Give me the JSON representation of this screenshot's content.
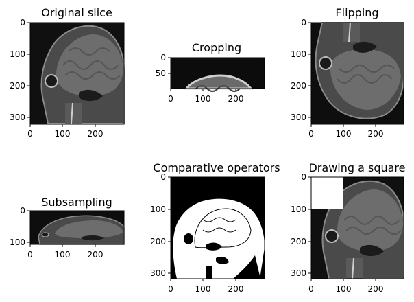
{
  "figure": {
    "panels": [
      {
        "id": "original",
        "title": "Original slice",
        "x_ticks": [
          "0",
          "100",
          "200"
        ],
        "y_ticks": [
          "0",
          "100",
          "200",
          "300"
        ],
        "content": "mri-sagittal",
        "bg": "#101010"
      },
      {
        "id": "cropping",
        "title": "Cropping",
        "x_ticks": [
          "0",
          "100",
          "200"
        ],
        "y_ticks": [
          "0",
          "50"
        ],
        "content": "mri-crop-top",
        "bg": "#0c0c0c"
      },
      {
        "id": "flipping",
        "title": "Flipping",
        "x_ticks": [
          "0",
          "100",
          "200"
        ],
        "y_ticks": [
          "0",
          "100",
          "200",
          "300"
        ],
        "content": "mri-flipped",
        "bg": "#0e0e0e"
      },
      {
        "id": "subsampling",
        "title": "Subsampling",
        "x_ticks": [
          "0",
          "100",
          "200"
        ],
        "y_ticks": [
          "0",
          "100"
        ],
        "content": "mri-squashed",
        "bg": "#0e0e0e"
      },
      {
        "id": "comparative",
        "title": "Comparative operators",
        "x_ticks": [
          "0",
          "100",
          "200"
        ],
        "y_ticks": [
          "0",
          "100",
          "200",
          "300"
        ],
        "content": "binary-mask",
        "bg": "#000000"
      },
      {
        "id": "square",
        "title": "Drawing a square",
        "x_ticks": [
          "0",
          "100",
          "200"
        ],
        "y_ticks": [
          "0",
          "100",
          "200",
          "300"
        ],
        "content": "mri-square",
        "bg": "#101010"
      }
    ]
  }
}
